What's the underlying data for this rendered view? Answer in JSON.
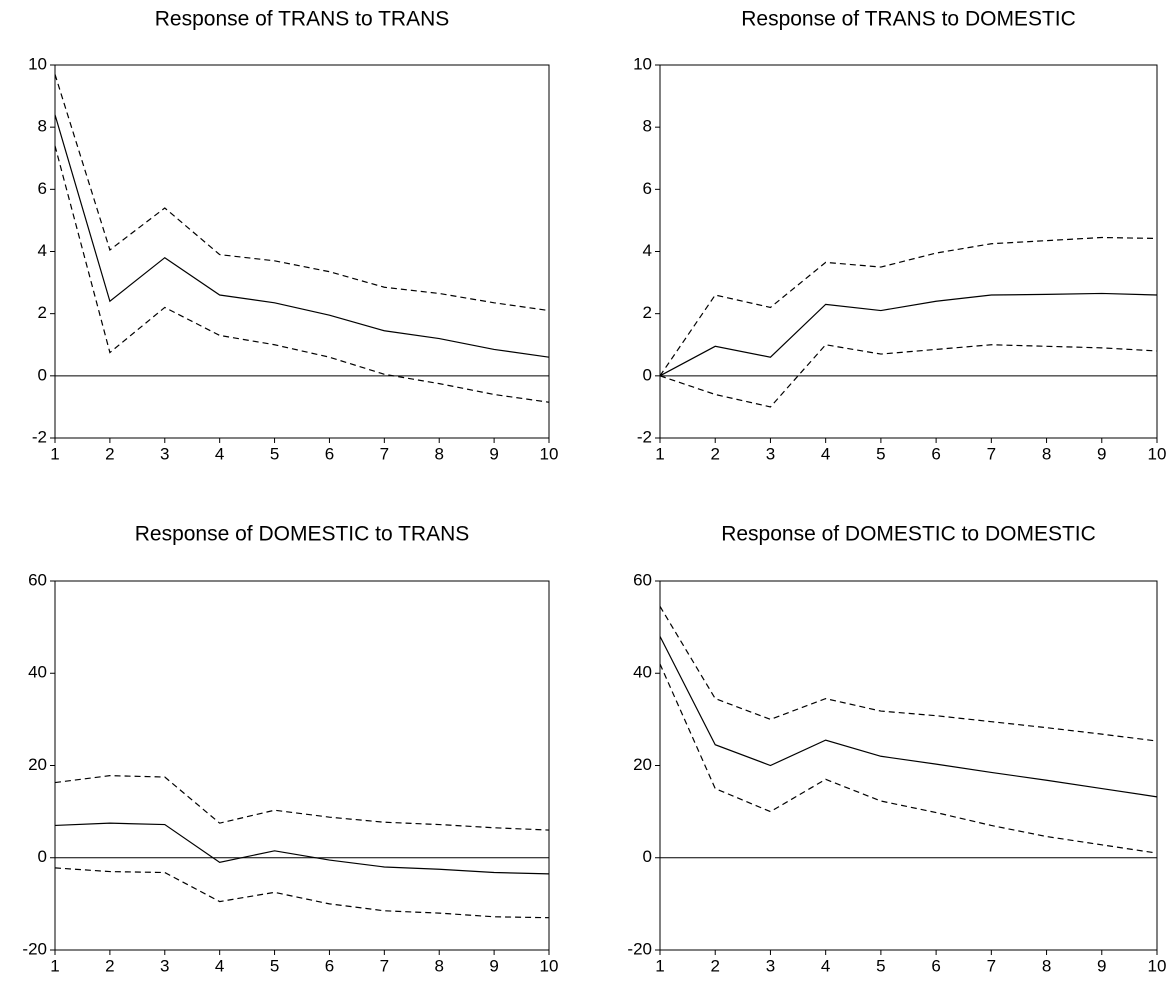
{
  "chart_data": [
    {
      "type": "line",
      "title": "Response of TRANS to TRANS",
      "x": [
        1,
        2,
        3,
        4,
        5,
        6,
        7,
        8,
        9,
        10
      ],
      "xlim": [
        1,
        10
      ],
      "xticks": [
        1,
        2,
        3,
        4,
        5,
        6,
        7,
        8,
        9,
        10
      ],
      "ylim": [
        -2,
        10
      ],
      "yticks": [
        -2,
        0,
        2,
        4,
        6,
        8,
        10
      ],
      "zero_line": true,
      "series": [
        {
          "color": "#000000",
          "dashed": false,
          "values": [
            8.4,
            2.4,
            3.8,
            2.6,
            2.35,
            1.95,
            1.45,
            1.2,
            0.85,
            0.6
          ]
        },
        {
          "color": "#000000",
          "dashed": true,
          "values": [
            9.7,
            4.05,
            5.4,
            3.9,
            3.7,
            3.35,
            2.85,
            2.65,
            2.35,
            2.1
          ]
        },
        {
          "color": "#000000",
          "dashed": true,
          "values": [
            7.4,
            0.75,
            2.2,
            1.3,
            1.0,
            0.6,
            0.05,
            -0.25,
            -0.6,
            -0.85
          ]
        }
      ]
    },
    {
      "type": "line",
      "title": "Response of TRANS to DOMESTIC",
      "x": [
        1,
        2,
        3,
        4,
        5,
        6,
        7,
        8,
        9,
        10
      ],
      "xlim": [
        1,
        10
      ],
      "xticks": [
        1,
        2,
        3,
        4,
        5,
        6,
        7,
        8,
        9,
        10
      ],
      "ylim": [
        -2,
        10
      ],
      "yticks": [
        -2,
        0,
        2,
        4,
        6,
        8,
        10
      ],
      "zero_line": true,
      "series": [
        {
          "color": "#000000",
          "dashed": false,
          "values": [
            0,
            0.95,
            0.6,
            2.3,
            2.1,
            2.4,
            2.6,
            2.62,
            2.65,
            2.6
          ]
        },
        {
          "color": "#000000",
          "dashed": true,
          "values": [
            0,
            2.6,
            2.2,
            3.65,
            3.5,
            3.95,
            4.25,
            4.35,
            4.45,
            4.42
          ]
        },
        {
          "color": "#000000",
          "dashed": true,
          "values": [
            0,
            -0.6,
            -1.0,
            1.0,
            0.7,
            0.85,
            1.0,
            0.95,
            0.9,
            0.8
          ]
        }
      ]
    },
    {
      "type": "line",
      "title": "Response of DOMESTIC to TRANS",
      "x": [
        1,
        2,
        3,
        4,
        5,
        6,
        7,
        8,
        9,
        10
      ],
      "xlim": [
        1,
        10
      ],
      "xticks": [
        1,
        2,
        3,
        4,
        5,
        6,
        7,
        8,
        9,
        10
      ],
      "ylim": [
        -20,
        60
      ],
      "yticks": [
        -20,
        0,
        20,
        40,
        60
      ],
      "zero_line": true,
      "series": [
        {
          "color": "#000000",
          "dashed": false,
          "values": [
            7,
            7.5,
            7.2,
            -1,
            1.5,
            -0.5,
            -2,
            -2.5,
            -3.2,
            -3.5
          ]
        },
        {
          "color": "#000000",
          "dashed": true,
          "values": [
            16.3,
            17.8,
            17.5,
            7.5,
            10.3,
            8.8,
            7.7,
            7.2,
            6.5,
            6.0
          ]
        },
        {
          "color": "#000000",
          "dashed": true,
          "values": [
            -2.2,
            -3,
            -3.2,
            -9.5,
            -7.5,
            -10,
            -11.5,
            -12,
            -12.8,
            -13
          ]
        }
      ]
    },
    {
      "type": "line",
      "title": "Response of DOMESTIC to DOMESTIC",
      "x": [
        1,
        2,
        3,
        4,
        5,
        6,
        7,
        8,
        9,
        10
      ],
      "xlim": [
        1,
        10
      ],
      "xticks": [
        1,
        2,
        3,
        4,
        5,
        6,
        7,
        8,
        9,
        10
      ],
      "ylim": [
        -20,
        60
      ],
      "yticks": [
        -20,
        0,
        20,
        40,
        60
      ],
      "zero_line": true,
      "series": [
        {
          "color": "#000000",
          "dashed": false,
          "values": [
            48,
            24.5,
            20,
            25.5,
            22,
            20.3,
            18.5,
            16.8,
            15,
            13.2
          ]
        },
        {
          "color": "#000000",
          "dashed": true,
          "values": [
            54.5,
            34.5,
            30,
            34.5,
            31.8,
            30.8,
            29.5,
            28.2,
            26.8,
            25.3
          ]
        },
        {
          "color": "#000000",
          "dashed": true,
          "values": [
            42,
            15,
            10,
            17,
            12.3,
            9.8,
            7,
            4.6,
            2.8,
            1
          ]
        }
      ]
    }
  ]
}
